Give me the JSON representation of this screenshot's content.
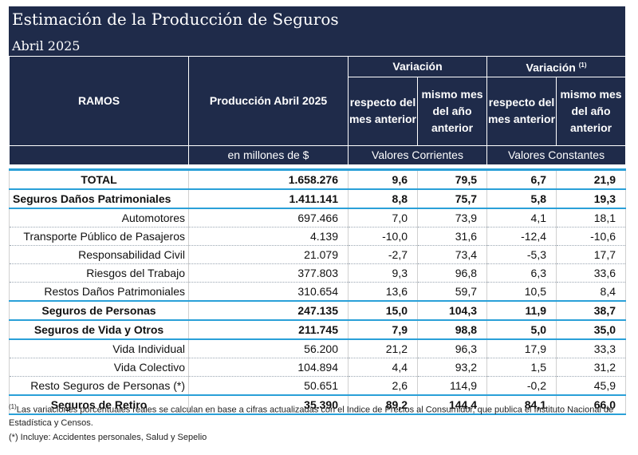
{
  "title": "Estimación de la Producción de Seguros",
  "subtitle": "Abril 2025",
  "header": {
    "ramos": "RAMOS",
    "produccion": "Producción Abril 2025",
    "variacion": "Variación",
    "variacion_const": "Variación",
    "variacion_const_sup": "(1)",
    "respecto": "respecto del mes anterior",
    "mismo_mes": "mismo mes del año anterior",
    "respecto2": "respecto del mes anterior",
    "mismo_mes2": "mismo mes del año anterior",
    "unidad": "en millones de $",
    "valores_corrientes": "Valores Corrientes",
    "valores_constantes": "Valores Constantes"
  },
  "rows": [
    {
      "name": "TOTAL",
      "prod": "1.658.276",
      "v1": "9,6",
      "v2": "79,5",
      "v3": "6,7",
      "v4": "21,9"
    },
    {
      "name": "Seguros Daños Patrimoniales",
      "prod": "1.411.141",
      "v1": "8,8",
      "v2": "75,7",
      "v3": "5,8",
      "v4": "19,3"
    },
    {
      "name": "Automotores",
      "prod": "697.466",
      "v1": "7,0",
      "v2": "73,9",
      "v3": "4,1",
      "v4": "18,1"
    },
    {
      "name": "Transporte Público de Pasajeros",
      "prod": "4.139",
      "v1": "-10,0",
      "v2": "31,6",
      "v3": "-12,4",
      "v4": "-10,6"
    },
    {
      "name": "Responsabilidad Civil",
      "prod": "21.079",
      "v1": "-2,7",
      "v2": "73,4",
      "v3": "-5,3",
      "v4": "17,7"
    },
    {
      "name": "Riesgos del Trabajo",
      "prod": "377.803",
      "v1": "9,3",
      "v2": "96,8",
      "v3": "6,3",
      "v4": "33,6"
    },
    {
      "name": "Restos Daños Patrimoniales",
      "prod": "310.654",
      "v1": "13,6",
      "v2": "59,7",
      "v3": "10,5",
      "v4": "8,4"
    },
    {
      "name": "Seguros de Personas",
      "prod": "247.135",
      "v1": "15,0",
      "v2": "104,3",
      "v3": "11,9",
      "v4": "38,7"
    },
    {
      "name": "Seguros de Vida y Otros",
      "prod": "211.745",
      "v1": "7,9",
      "v2": "98,8",
      "v3": "5,0",
      "v4": "35,0"
    },
    {
      "name": "Vida Individual",
      "prod": "56.200",
      "v1": "21,2",
      "v2": "96,3",
      "v3": "17,9",
      "v4": "33,3"
    },
    {
      "name": "Vida Colectivo",
      "prod": "104.894",
      "v1": "4,4",
      "v2": "93,2",
      "v3": "1,5",
      "v4": "31,2"
    },
    {
      "name": "Resto Seguros de Personas (*)",
      "prod": "50.651",
      "v1": "2,6",
      "v2": "114,9",
      "v3": "-0,2",
      "v4": "45,9"
    },
    {
      "name": "Seguros de Retiro",
      "prod": "35.390",
      "v1": "89,2",
      "v2": "144,4",
      "v3": "84,1",
      "v4": "66,0"
    }
  ],
  "footnote1_sup": "(1)",
  "footnote1": "Las variaciones porcentuales reales se calculan en base a cifras actualizadas con  el Indice de Precios al Consumidor, que publica el Instituto Nacional de Estadística y  Censos.",
  "footnote2": "(*) Incluye: Accidentes personales, Salud y Sepelio"
}
